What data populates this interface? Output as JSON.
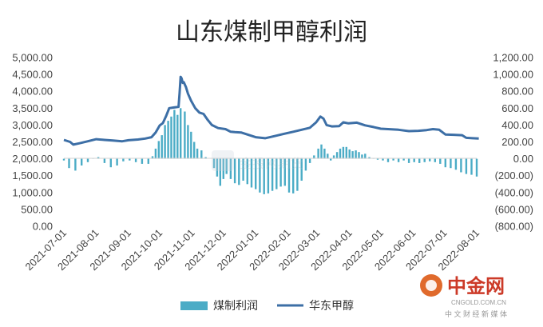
{
  "chart_data": {
    "type": "bar+line",
    "title": "山东煤制甲醇利润",
    "x_tick_labels": [
      "2021-07-01",
      "2021-08-01",
      "2021-09-01",
      "2021-10-01",
      "2021-11-01",
      "2021-12-01",
      "2022-01-01",
      "2022-02-01",
      "2022-03-01",
      "2022-04-01",
      "2022-05-01",
      "2022-06-01",
      "2022-07-01",
      "2022-08-01"
    ],
    "x_range": [
      "2021-07-01",
      "2022-08-01"
    ],
    "y_left": {
      "range": [
        0,
        5000
      ],
      "step": 500,
      "tick_labels": [
        "0.00",
        "500.00",
        "1,000.00",
        "1,500.00",
        "2,000.00",
        "2,500.00",
        "3,000.00",
        "3,500.00",
        "4,000.00",
        "4,500.00",
        "5,000.00"
      ]
    },
    "y_right": {
      "range": [
        -800,
        1200
      ],
      "step": 200,
      "tick_labels": [
        "(800.00)",
        "(600.00)",
        "(400.00)",
        "(200.00)",
        "0.00",
        "200.00",
        "400.00",
        "600.00",
        "800.00",
        "1,000.00",
        "1,200.00"
      ]
    },
    "grid": false,
    "legend_position": "bottom",
    "series": [
      {
        "name": "煤制利润",
        "type": "bar",
        "axis": "right",
        "color": "#4bacc6",
        "points": [
          [
            "2021-07-01",
            -20
          ],
          [
            "2021-07-06",
            -110
          ],
          [
            "2021-07-12",
            -140
          ],
          [
            "2021-07-18",
            -80
          ],
          [
            "2021-07-24",
            -40
          ],
          [
            "2021-07-29",
            10
          ],
          [
            "2021-08-03",
            20
          ],
          [
            "2021-08-09",
            -50
          ],
          [
            "2021-08-15",
            -100
          ],
          [
            "2021-08-21",
            -80
          ],
          [
            "2021-08-27",
            -30
          ],
          [
            "2021-09-02",
            -20
          ],
          [
            "2021-09-08",
            -40
          ],
          [
            "2021-09-14",
            -60
          ],
          [
            "2021-09-20",
            -60
          ],
          [
            "2021-09-24",
            30
          ],
          [
            "2021-09-27",
            120
          ],
          [
            "2021-09-30",
            210
          ],
          [
            "2021-10-03",
            280
          ],
          [
            "2021-10-06",
            400
          ],
          [
            "2021-10-09",
            450
          ],
          [
            "2021-10-12",
            500
          ],
          [
            "2021-10-15",
            580
          ],
          [
            "2021-10-18",
            520
          ],
          [
            "2021-10-21",
            600
          ],
          [
            "2021-10-25",
            560
          ],
          [
            "2021-10-28",
            400
          ],
          [
            "2021-10-31",
            320
          ],
          [
            "2021-11-03",
            200
          ],
          [
            "2021-11-06",
            120
          ],
          [
            "2021-11-10",
            100
          ],
          [
            "2021-11-14",
            20
          ],
          [
            "2021-11-22",
            -110
          ],
          [
            "2021-11-25",
            -210
          ],
          [
            "2021-11-28",
            -320
          ],
          [
            "2021-12-01",
            -240
          ],
          [
            "2021-12-04",
            -180
          ],
          [
            "2021-12-08",
            -240
          ],
          [
            "2021-12-12",
            -290
          ],
          [
            "2021-12-16",
            -310
          ],
          [
            "2021-12-20",
            -260
          ],
          [
            "2021-12-24",
            -300
          ],
          [
            "2021-12-28",
            -340
          ],
          [
            "2022-01-01",
            -360
          ],
          [
            "2022-01-05",
            -400
          ],
          [
            "2022-01-09",
            -420
          ],
          [
            "2022-01-13",
            -410
          ],
          [
            "2022-01-17",
            -380
          ],
          [
            "2022-01-21",
            -360
          ],
          [
            "2022-01-25",
            -330
          ],
          [
            "2022-01-29",
            -320
          ],
          [
            "2022-02-02",
            -400
          ],
          [
            "2022-02-06",
            -410
          ],
          [
            "2022-02-10",
            -380
          ],
          [
            "2022-02-14",
            -260
          ],
          [
            "2022-02-18",
            -140
          ],
          [
            "2022-02-22",
            -50
          ],
          [
            "2022-02-26",
            40
          ],
          [
            "2022-03-02",
            120
          ],
          [
            "2022-03-05",
            170
          ],
          [
            "2022-03-08",
            120
          ],
          [
            "2022-03-11",
            60
          ],
          [
            "2022-03-14",
            -20
          ],
          [
            "2022-03-17",
            40
          ],
          [
            "2022-03-20",
            80
          ],
          [
            "2022-03-23",
            120
          ],
          [
            "2022-03-26",
            140
          ],
          [
            "2022-03-29",
            140
          ],
          [
            "2022-04-01",
            110
          ],
          [
            "2022-04-04",
            90
          ],
          [
            "2022-04-07",
            100
          ],
          [
            "2022-04-10",
            80
          ],
          [
            "2022-04-13",
            50
          ],
          [
            "2022-04-16",
            60
          ],
          [
            "2022-04-20",
            20
          ],
          [
            "2022-04-24",
            10
          ],
          [
            "2022-04-28",
            -10
          ],
          [
            "2022-05-03",
            -20
          ],
          [
            "2022-05-08",
            -40
          ],
          [
            "2022-05-13",
            -20
          ],
          [
            "2022-05-18",
            -40
          ],
          [
            "2022-05-23",
            -20
          ],
          [
            "2022-05-28",
            -50
          ],
          [
            "2022-06-02",
            -40
          ],
          [
            "2022-06-07",
            -50
          ],
          [
            "2022-06-12",
            -40
          ],
          [
            "2022-06-17",
            -30
          ],
          [
            "2022-06-22",
            -40
          ],
          [
            "2022-06-27",
            -60
          ],
          [
            "2022-07-02",
            -100
          ],
          [
            "2022-07-07",
            -110
          ],
          [
            "2022-07-12",
            -130
          ],
          [
            "2022-07-17",
            -160
          ],
          [
            "2022-07-22",
            -180
          ],
          [
            "2022-07-27",
            -190
          ],
          [
            "2022-08-01",
            -210
          ]
        ]
      },
      {
        "name": "华东甲醇",
        "type": "line",
        "axis": "left",
        "color": "#3d6fa6",
        "points": [
          [
            "2021-07-01",
            2560
          ],
          [
            "2021-07-07",
            2500
          ],
          [
            "2021-07-10",
            2420
          ],
          [
            "2021-07-16",
            2460
          ],
          [
            "2021-07-24",
            2520
          ],
          [
            "2021-08-01",
            2580
          ],
          [
            "2021-08-09",
            2560
          ],
          [
            "2021-08-17",
            2540
          ],
          [
            "2021-08-26",
            2520
          ],
          [
            "2021-09-01",
            2550
          ],
          [
            "2021-09-10",
            2570
          ],
          [
            "2021-09-17",
            2600
          ],
          [
            "2021-09-23",
            2640
          ],
          [
            "2021-09-27",
            2780
          ],
          [
            "2021-10-01",
            2990
          ],
          [
            "2021-10-04",
            3060
          ],
          [
            "2021-10-07",
            3260
          ],
          [
            "2021-10-10",
            3500
          ],
          [
            "2021-10-14",
            3520
          ],
          [
            "2021-10-19",
            3540
          ],
          [
            "2021-10-20",
            3950
          ],
          [
            "2021-10-21",
            4430
          ],
          [
            "2021-10-22",
            4380
          ],
          [
            "2021-10-23",
            4250
          ],
          [
            "2021-10-24",
            4270
          ],
          [
            "2021-10-26",
            4130
          ],
          [
            "2021-10-28",
            3930
          ],
          [
            "2021-10-31",
            3720
          ],
          [
            "2021-11-04",
            3500
          ],
          [
            "2021-11-08",
            3370
          ],
          [
            "2021-11-12",
            3330
          ],
          [
            "2021-11-16",
            3150
          ],
          [
            "2021-11-20",
            3000
          ],
          [
            "2021-11-26",
            2910
          ],
          [
            "2021-12-03",
            2880
          ],
          [
            "2021-12-08",
            2800
          ],
          [
            "2021-12-12",
            2790
          ],
          [
            "2021-12-18",
            2780
          ],
          [
            "2021-12-26",
            2700
          ],
          [
            "2022-01-01",
            2640
          ],
          [
            "2022-01-10",
            2610
          ],
          [
            "2022-01-20",
            2680
          ],
          [
            "2022-01-28",
            2740
          ],
          [
            "2022-02-06",
            2800
          ],
          [
            "2022-02-14",
            2860
          ],
          [
            "2022-02-22",
            2920
          ],
          [
            "2022-02-28",
            3080
          ],
          [
            "2022-03-04",
            3250
          ],
          [
            "2022-03-07",
            3190
          ],
          [
            "2022-03-10",
            3000
          ],
          [
            "2022-03-15",
            2960
          ],
          [
            "2022-03-22",
            2970
          ],
          [
            "2022-03-26",
            3080
          ],
          [
            "2022-03-31",
            3050
          ],
          [
            "2022-04-08",
            3070
          ],
          [
            "2022-04-16",
            2990
          ],
          [
            "2022-04-24",
            2940
          ],
          [
            "2022-05-01",
            2890
          ],
          [
            "2022-05-08",
            2880
          ],
          [
            "2022-05-18",
            2860
          ],
          [
            "2022-05-28",
            2820
          ],
          [
            "2022-06-06",
            2830
          ],
          [
            "2022-06-14",
            2850
          ],
          [
            "2022-06-20",
            2880
          ],
          [
            "2022-06-26",
            2860
          ],
          [
            "2022-07-02",
            2720
          ],
          [
            "2022-07-10",
            2710
          ],
          [
            "2022-07-18",
            2700
          ],
          [
            "2022-07-22",
            2620
          ],
          [
            "2022-07-28",
            2610
          ],
          [
            "2022-08-03",
            2600
          ]
        ]
      }
    ]
  },
  "watermarks": {
    "center_text": "金投网期货",
    "logo_text": "中金网",
    "logo_url_text": "CNGOLD.COM.CN",
    "logo_tagline": "中 文 财 经 新 媒 体"
  }
}
